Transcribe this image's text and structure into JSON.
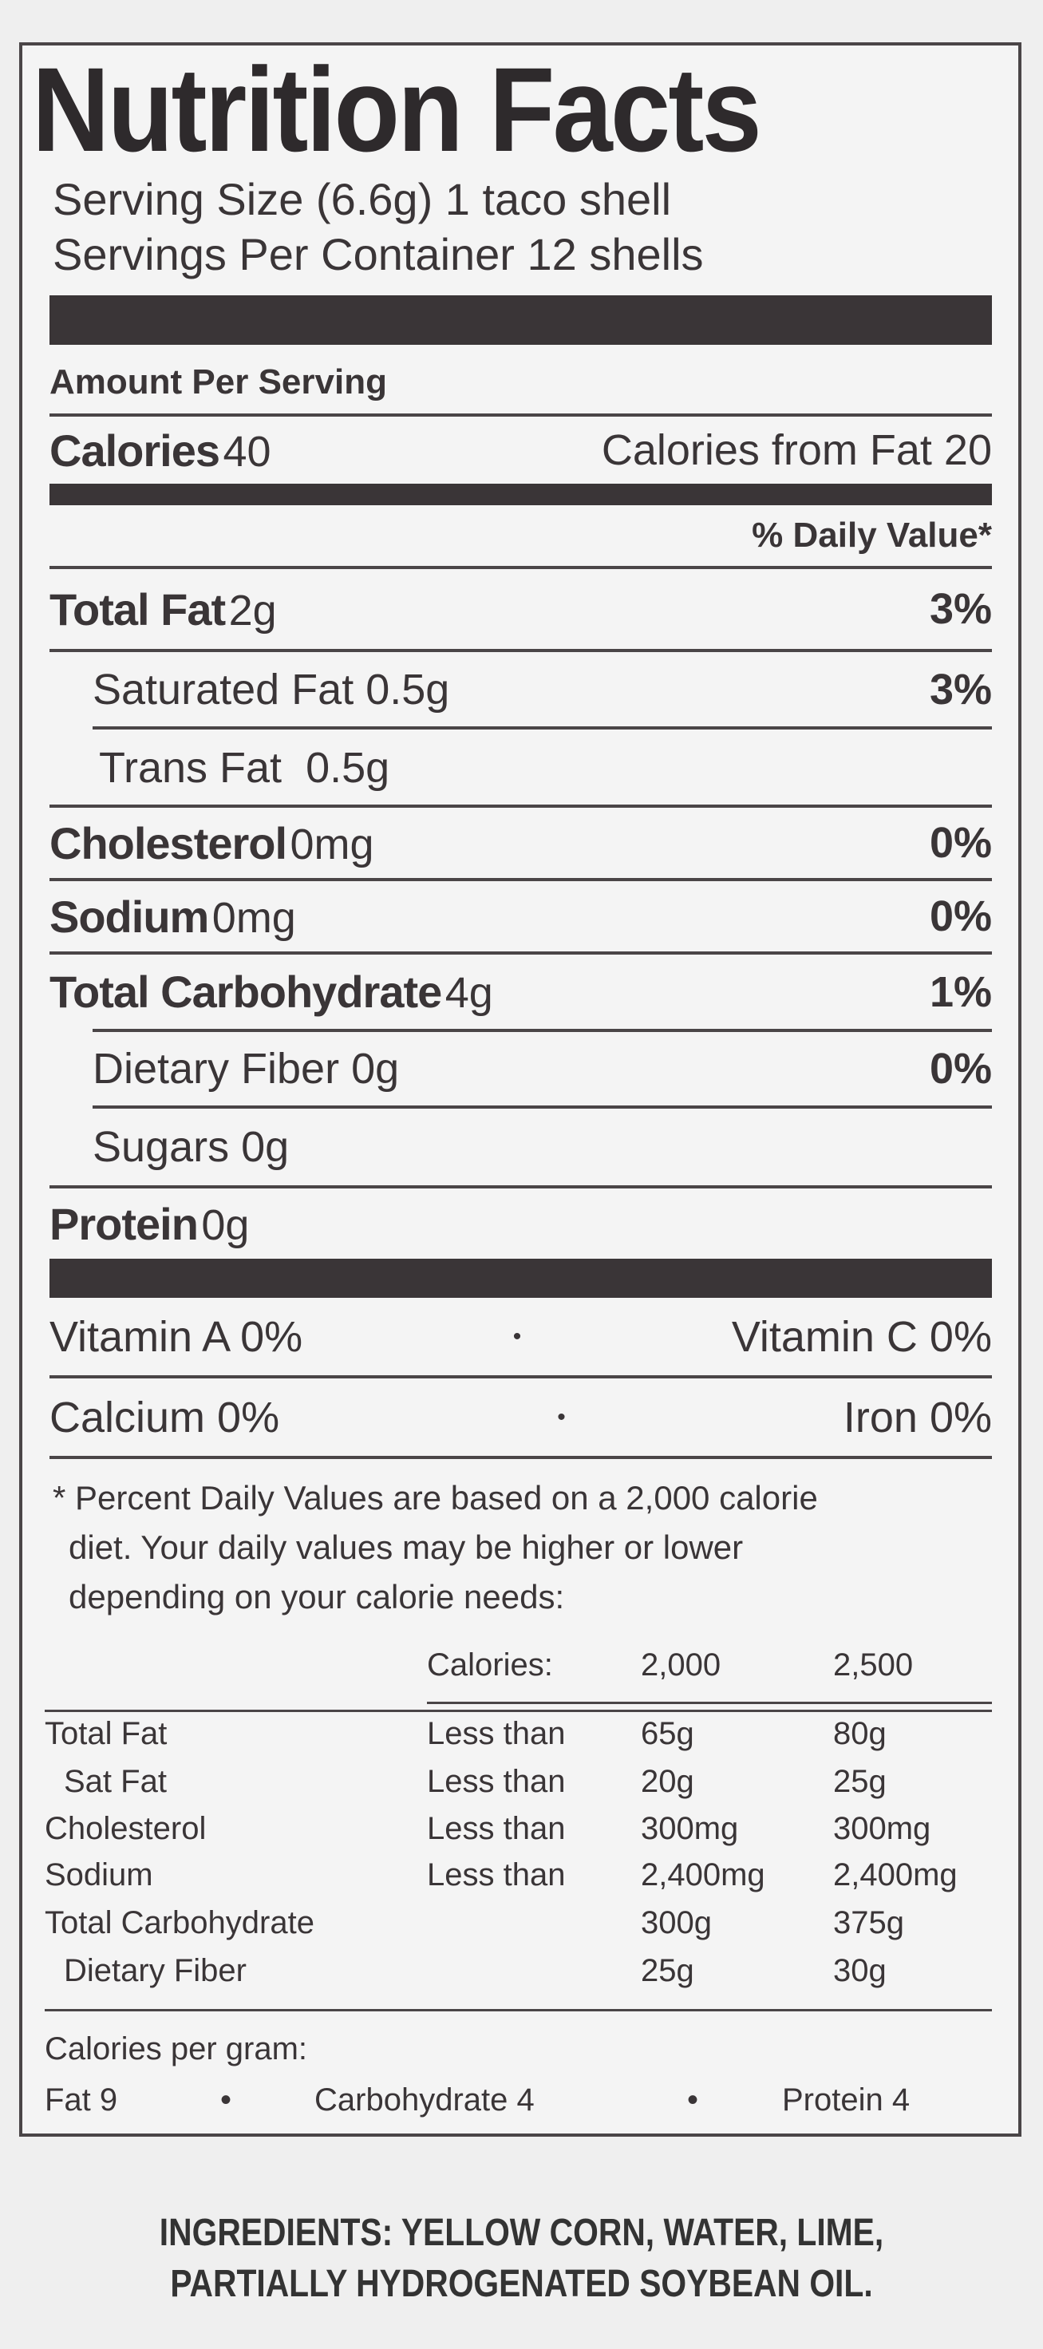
{
  "title": "Nutrition Facts",
  "serving_size": "Serving Size (6.6g) 1 taco shell",
  "servings_per_container": "Servings Per Container 12 shells",
  "amount_per_serving": "Amount Per Serving",
  "calories": {
    "label": "Calories",
    "value": "40",
    "from_fat": "Calories from Fat 20"
  },
  "daily_value_header": "% Daily Value*",
  "nutrients": [
    {
      "name": "Total Fat",
      "amount": "2g",
      "dv": "3%"
    },
    {
      "name": "Saturated Fat",
      "amount": "0.5g",
      "dv": "3%"
    },
    {
      "name": "Trans Fat",
      "amount": "0.5g",
      "dv": ""
    },
    {
      "name": "Cholesterol",
      "amount": "0mg",
      "dv": "0%"
    },
    {
      "name": "Sodium",
      "amount": "0mg",
      "dv": "0%"
    },
    {
      "name": "Total Carbohydrate",
      "amount": "4g",
      "dv": "1%"
    },
    {
      "name": "Dietary Fiber",
      "amount": "0g",
      "dv": "0%"
    },
    {
      "name": "Sugars",
      "amount": "0g",
      "dv": ""
    },
    {
      "name": "Protein",
      "amount": "0g",
      "dv": ""
    }
  ],
  "vitamins": [
    {
      "left": "Vitamin A 0%",
      "right": "Vitamin C 0%"
    },
    {
      "left": "Calcium 0%",
      "right": "Iron 0%"
    }
  ],
  "footnote": [
    "* Percent Daily Values are based on a 2,000 calorie",
    "diet. Your daily values may be higher or lower",
    "depending on your calorie needs:"
  ],
  "reference_table": {
    "header": [
      "",
      "Calories:",
      "2,000",
      "2,500"
    ],
    "rows": [
      [
        "Total Fat",
        "Less than",
        "65g",
        "80g"
      ],
      [
        "Sat Fat",
        "Less than",
        "20g",
        "25g"
      ],
      [
        "Cholesterol",
        "Less than",
        "300mg",
        "300mg"
      ],
      [
        "Sodium",
        "Less than",
        "2,400mg",
        "2,400mg"
      ],
      [
        "Total Carbohydrate",
        "",
        "300g",
        "375g"
      ],
      [
        "Dietary Fiber",
        "",
        "25g",
        "30g"
      ]
    ]
  },
  "calories_per_gram": {
    "label": "Calories per gram:",
    "fat": "Fat 9",
    "carb": "Carbohydrate 4",
    "protein": "Protein 4",
    "separator": "•"
  },
  "ingredients": [
    "INGREDIENTS: YELLOW CORN, WATER, LIME,",
    "PARTIALLY HYDROGENATED SOYBEAN OIL."
  ]
}
